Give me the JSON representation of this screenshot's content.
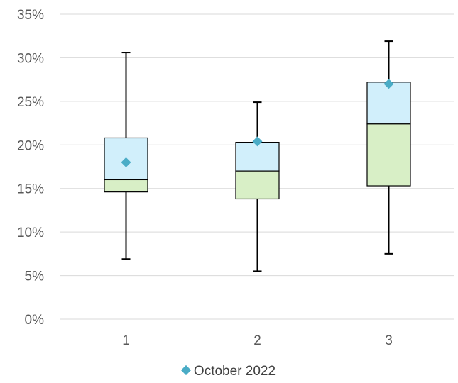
{
  "chart_data": {
    "type": "box",
    "title": "",
    "xlabel": "",
    "ylabel": "",
    "ylim": [
      0,
      35
    ],
    "y_ticks": [
      "0%",
      "5%",
      "10%",
      "15%",
      "20%",
      "25%",
      "30%",
      "35%"
    ],
    "categories": [
      "1",
      "2",
      "3"
    ],
    "boxes": [
      {
        "category": "1",
        "min": 6.9,
        "q1": 14.6,
        "median": 16.0,
        "q3": 20.8,
        "max": 30.6
      },
      {
        "category": "2",
        "min": 5.5,
        "q1": 13.8,
        "median": 17.0,
        "q3": 20.3,
        "max": 24.9
      },
      {
        "category": "3",
        "min": 7.5,
        "q1": 15.3,
        "median": 22.4,
        "q3": 27.2,
        "max": 31.9
      }
    ],
    "series": [
      {
        "name": "October 2022",
        "values": [
          18.0,
          20.4,
          27.0
        ]
      }
    ],
    "grid": true,
    "legend_position": "bottom",
    "colors": {
      "upper_box": "#d1effb",
      "lower_box": "#d8efc6",
      "marker": "#4aacc6",
      "gridline": "#d9d9d9",
      "whisker": "#000000"
    }
  }
}
